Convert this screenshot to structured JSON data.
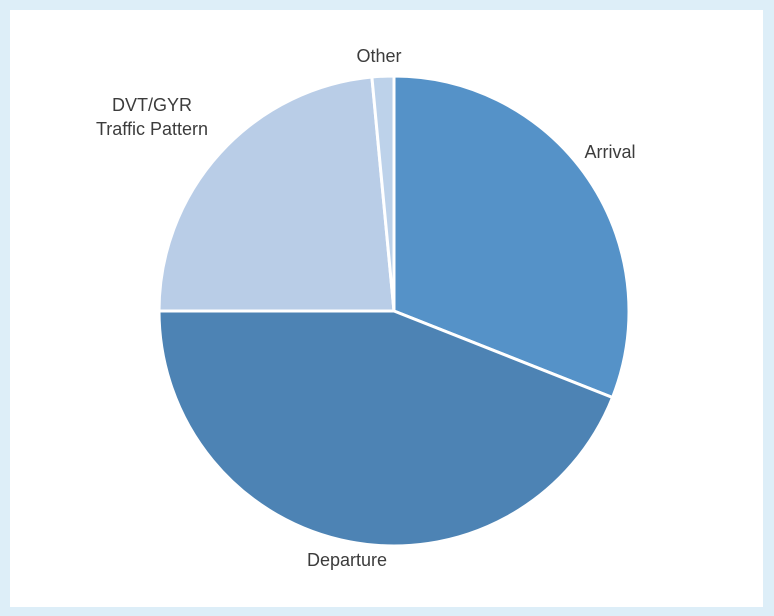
{
  "chart_data": {
    "type": "pie",
    "title": "",
    "slices": [
      {
        "label": [
          "Arrival"
        ],
        "value": 31,
        "color": "#5592c8"
      },
      {
        "label": [
          "Departure"
        ],
        "value": 44,
        "color": "#4d83b4"
      },
      {
        "label": [
          "DVT/GYR",
          "Traffic Pattern"
        ],
        "value": 23.5,
        "color": "#b9cde7"
      },
      {
        "label": [
          "Other"
        ],
        "value": 1.5,
        "color": "#bdd2ea"
      }
    ],
    "start_angle_deg": 0,
    "direction": "clockwise",
    "legend": "none",
    "slice_border_color": "#ffffff"
  }
}
